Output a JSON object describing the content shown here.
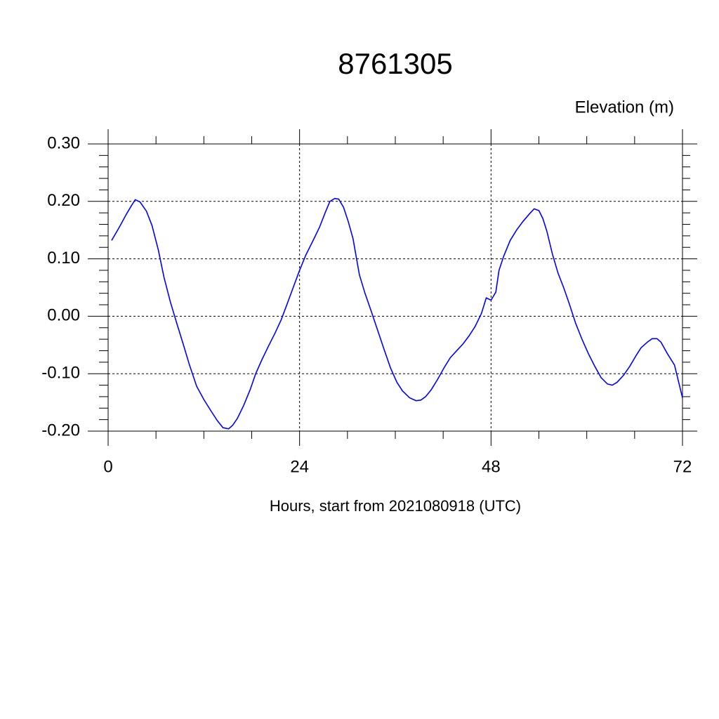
{
  "chart_data": {
    "type": "line",
    "title": "8761305",
    "ylabel": "Elevation (m)",
    "xlabel": "Hours, start from 2021080918 (UTC)",
    "x": [
      0.44,
      1.4,
      2.3,
      2.9,
      3.4,
      4.0,
      4.8,
      5.5,
      6.3,
      7.0,
      7.8,
      8.6,
      9.4,
      10.2,
      11.1,
      12.0,
      12.9,
      13.7,
      14.4,
      15.1,
      15.6,
      16.2,
      17.0,
      17.8,
      18.5,
      19.3,
      20.1,
      20.9,
      21.7,
      22.4,
      23.2,
      24.0,
      24.8,
      25.7,
      26.5,
      27.2,
      27.8,
      28.4,
      28.9,
      29.5,
      30.1,
      30.7,
      31.5,
      32.2,
      33.0,
      33.8,
      34.6,
      35.4,
      36.2,
      36.9,
      37.8,
      38.6,
      39.2,
      39.8,
      40.5,
      41.3,
      42.1,
      42.9,
      43.7,
      44.5,
      45.2,
      46.0,
      46.8,
      47.4,
      48.0,
      48.6,
      49.0,
      49.6,
      50.4,
      51.2,
      52.0,
      52.8,
      53.4,
      54.0,
      54.5,
      55.0,
      55.7,
      56.4,
      57.1,
      57.8,
      58.6,
      59.4,
      60.2,
      61.0,
      61.8,
      62.6,
      63.2,
      63.8,
      64.6,
      65.4,
      66.2,
      66.8,
      67.6,
      68.2,
      68.8,
      69.3,
      70.1,
      71.0,
      72.0
    ],
    "series": [
      {
        "color": "#0000ff",
        "values": [
          0.132,
          0.155,
          0.178,
          0.192,
          0.203,
          0.199,
          0.183,
          0.158,
          0.115,
          0.068,
          0.025,
          -0.012,
          -0.048,
          -0.085,
          -0.122,
          -0.145,
          -0.165,
          -0.182,
          -0.194,
          -0.196,
          -0.19,
          -0.178,
          -0.155,
          -0.128,
          -0.1,
          -0.075,
          -0.052,
          -0.03,
          -0.006,
          0.02,
          0.05,
          0.08,
          0.107,
          0.132,
          0.155,
          0.18,
          0.2,
          0.205,
          0.204,
          0.19,
          0.165,
          0.135,
          0.072,
          0.04,
          0.008,
          -0.025,
          -0.058,
          -0.09,
          -0.115,
          -0.13,
          -0.142,
          -0.147,
          -0.146,
          -0.14,
          -0.128,
          -0.11,
          -0.09,
          -0.072,
          -0.06,
          -0.048,
          -0.035,
          -0.018,
          0.005,
          0.032,
          0.028,
          0.042,
          0.08,
          0.105,
          0.132,
          0.15,
          0.165,
          0.178,
          0.187,
          0.184,
          0.17,
          0.148,
          0.108,
          0.075,
          0.05,
          0.022,
          -0.012,
          -0.04,
          -0.065,
          -0.087,
          -0.107,
          -0.118,
          -0.12,
          -0.115,
          -0.103,
          -0.087,
          -0.068,
          -0.055,
          -0.045,
          -0.039,
          -0.039,
          -0.045,
          -0.065,
          -0.085,
          -0.142
        ]
      }
    ],
    "xlim": [
      0,
      72
    ],
    "xticks": [
      0,
      24,
      48,
      72
    ],
    "xminorticks": [
      6,
      12,
      18,
      30,
      36,
      42,
      54,
      60,
      66
    ],
    "ylim": [
      -0.2,
      0.3
    ],
    "yticks": [
      {
        "value": -0.2,
        "label": "-0.20"
      },
      {
        "value": -0.1,
        "label": "-0.10"
      },
      {
        "value": 0,
        "label": "0.00"
      },
      {
        "value": 0.1,
        "label": "0.10"
      },
      {
        "value": 0.2,
        "label": "0.20"
      },
      {
        "value": 0.3,
        "label": "0.30"
      }
    ],
    "yminorticks": [
      -0.18,
      -0.16,
      -0.14,
      -0.12,
      -0.08,
      -0.06,
      -0.04,
      -0.02,
      0.02,
      0.04,
      0.06,
      0.08,
      0.12,
      0.14,
      0.16,
      0.18,
      0.22,
      0.24,
      0.26,
      0.28
    ],
    "grid": true
  }
}
